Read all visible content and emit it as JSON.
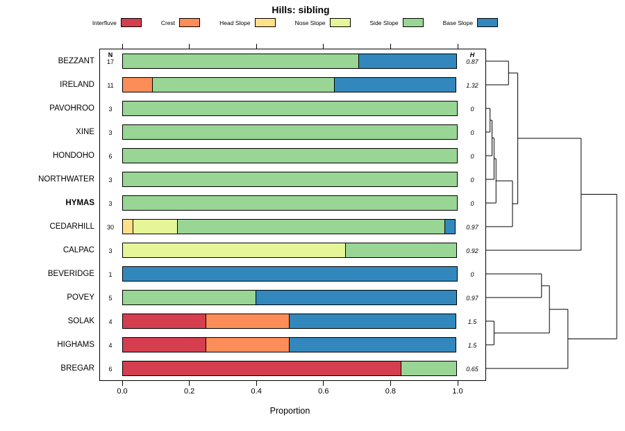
{
  "chart_data": {
    "type": "bar",
    "variant": "stacked-horizontal-proportion-with-dendrogram",
    "title": "Hills: sibling",
    "xlabel": "Proportion",
    "xlim": [
      0,
      1
    ],
    "grid": false,
    "legend_position": "top",
    "columns": {
      "n": "N",
      "h": "H"
    },
    "xticks": [
      {
        "value": 0,
        "label": "0.0"
      },
      {
        "value": 0.2,
        "label": "0.2"
      },
      {
        "value": 0.4,
        "label": "0.4"
      },
      {
        "value": 0.6,
        "label": "0.6"
      },
      {
        "value": 0.8,
        "label": "0.8"
      },
      {
        "value": 1,
        "label": "1.0"
      }
    ],
    "legend": [
      {
        "label": "Interfluve",
        "color": "#D53E4F"
      },
      {
        "label": "Crest",
        "color": "#FC8D59"
      },
      {
        "label": "Head Slope",
        "color": "#FEE08B"
      },
      {
        "label": "Nose Slope",
        "color": "#E6F598"
      },
      {
        "label": "Side Slope",
        "color": "#99D594"
      },
      {
        "label": "Base Slope",
        "color": "#3288BD"
      }
    ],
    "rows": [
      {
        "name": "BEZZANT",
        "n": 17,
        "h": "0.87",
        "bold": false,
        "segments": [
          {
            "category": "Side Slope",
            "value": 0.706
          },
          {
            "category": "Base Slope",
            "value": 0.294
          }
        ]
      },
      {
        "name": "IRELAND",
        "n": 11,
        "h": "1.32",
        "bold": false,
        "segments": [
          {
            "category": "Crest",
            "value": 0.091
          },
          {
            "category": "Side Slope",
            "value": 0.545
          },
          {
            "category": "Base Slope",
            "value": 0.364
          }
        ]
      },
      {
        "name": "PAVOHROO",
        "n": 3,
        "h": "0",
        "bold": false,
        "segments": [
          {
            "category": "Side Slope",
            "value": 1
          }
        ]
      },
      {
        "name": "XINE",
        "n": 3,
        "h": "0",
        "bold": false,
        "segments": [
          {
            "category": "Side Slope",
            "value": 1
          }
        ]
      },
      {
        "name": "HONDOHO",
        "n": 6,
        "h": "0",
        "bold": false,
        "segments": [
          {
            "category": "Side Slope",
            "value": 1
          }
        ]
      },
      {
        "name": "NORTHWATER",
        "n": 3,
        "h": "0",
        "bold": false,
        "segments": [
          {
            "category": "Side Slope",
            "value": 1
          }
        ]
      },
      {
        "name": "HYMAS",
        "n": 3,
        "h": "0",
        "bold": true,
        "segments": [
          {
            "category": "Side Slope",
            "value": 1
          }
        ]
      },
      {
        "name": "CEDARHILL",
        "n": 30,
        "h": "0.97",
        "bold": false,
        "segments": [
          {
            "category": "Head Slope",
            "value": 0.033
          },
          {
            "category": "Nose Slope",
            "value": 0.134
          },
          {
            "category": "Side Slope",
            "value": 0.8
          },
          {
            "category": "Base Slope",
            "value": 0.033
          }
        ]
      },
      {
        "name": "CALPAC",
        "n": 3,
        "h": "0.92",
        "bold": false,
        "segments": [
          {
            "category": "Nose Slope",
            "value": 0.667
          },
          {
            "category": "Side Slope",
            "value": 0.333
          }
        ]
      },
      {
        "name": "BEVERIDGE",
        "n": 1,
        "h": "0",
        "bold": false,
        "segments": [
          {
            "category": "Base Slope",
            "value": 1
          }
        ]
      },
      {
        "name": "POVEY",
        "n": 5,
        "h": "0.97",
        "bold": false,
        "segments": [
          {
            "category": "Side Slope",
            "value": 0.4
          },
          {
            "category": "Base Slope",
            "value": 0.6
          }
        ]
      },
      {
        "name": "SOLAK",
        "n": 4,
        "h": "1.5",
        "bold": false,
        "segments": [
          {
            "category": "Interfluve",
            "value": 0.25
          },
          {
            "category": "Crest",
            "value": 0.25
          },
          {
            "category": "Base Slope",
            "value": 0.5
          }
        ]
      },
      {
        "name": "HIGHAMS",
        "n": 4,
        "h": "1.5",
        "bold": false,
        "segments": [
          {
            "category": "Interfluve",
            "value": 0.25
          },
          {
            "category": "Crest",
            "value": 0.25
          },
          {
            "category": "Base Slope",
            "value": 0.5
          }
        ]
      },
      {
        "name": "BREGAR",
        "n": 6,
        "h": "0.65",
        "bold": false,
        "segments": [
          {
            "category": "Interfluve",
            "value": 0.833
          },
          {
            "category": "Side Slope",
            "value": 0.167
          }
        ]
      }
    ],
    "dendrogram": {
      "root": {
        "h": 0.99,
        "children": [
          {
            "h": 0.72,
            "children": [
              {
                "h": 0.24,
                "children": [
                  {
                    "h": 0.17,
                    "children": [
                      {
                        "leaf": "BEZZANT"
                      },
                      {
                        "leaf": "IRELAND"
                      }
                    ]
                  },
                  {
                    "h": 0.2,
                    "children": [
                      {
                        "h": 0.075,
                        "children": [
                          {
                            "h": 0.06,
                            "children": [
                              {
                                "h": 0.045,
                                "children": [
                                  {
                                    "h": 0.03,
                                    "children": [
                                      {
                                        "leaf": "PAVOHROO"
                                      },
                                      {
                                        "leaf": "XINE"
                                      }
                                    ]
                                  },
                                  {
                                    "leaf": "HONDOHO"
                                  }
                                ]
                              },
                              {
                                "leaf": "NORTHWATER"
                              }
                            ]
                          },
                          {
                            "leaf": "HYMAS"
                          }
                        ]
                      },
                      {
                        "leaf": "CEDARHILL"
                      }
                    ]
                  }
                ]
              },
              {
                "leaf": "CALPAC"
              }
            ]
          },
          {
            "h": 0.62,
            "children": [
              {
                "h": 0.48,
                "children": [
                  {
                    "h": 0.42,
                    "children": [
                      {
                        "leaf": "BEVERIDGE"
                      },
                      {
                        "leaf": "POVEY"
                      }
                    ]
                  },
                  {
                    "h": 0.06,
                    "children": [
                      {
                        "leaf": "SOLAK"
                      },
                      {
                        "leaf": "HIGHAMS"
                      }
                    ]
                  }
                ]
              },
              {
                "leaf": "BREGAR"
              }
            ]
          }
        ]
      }
    }
  }
}
